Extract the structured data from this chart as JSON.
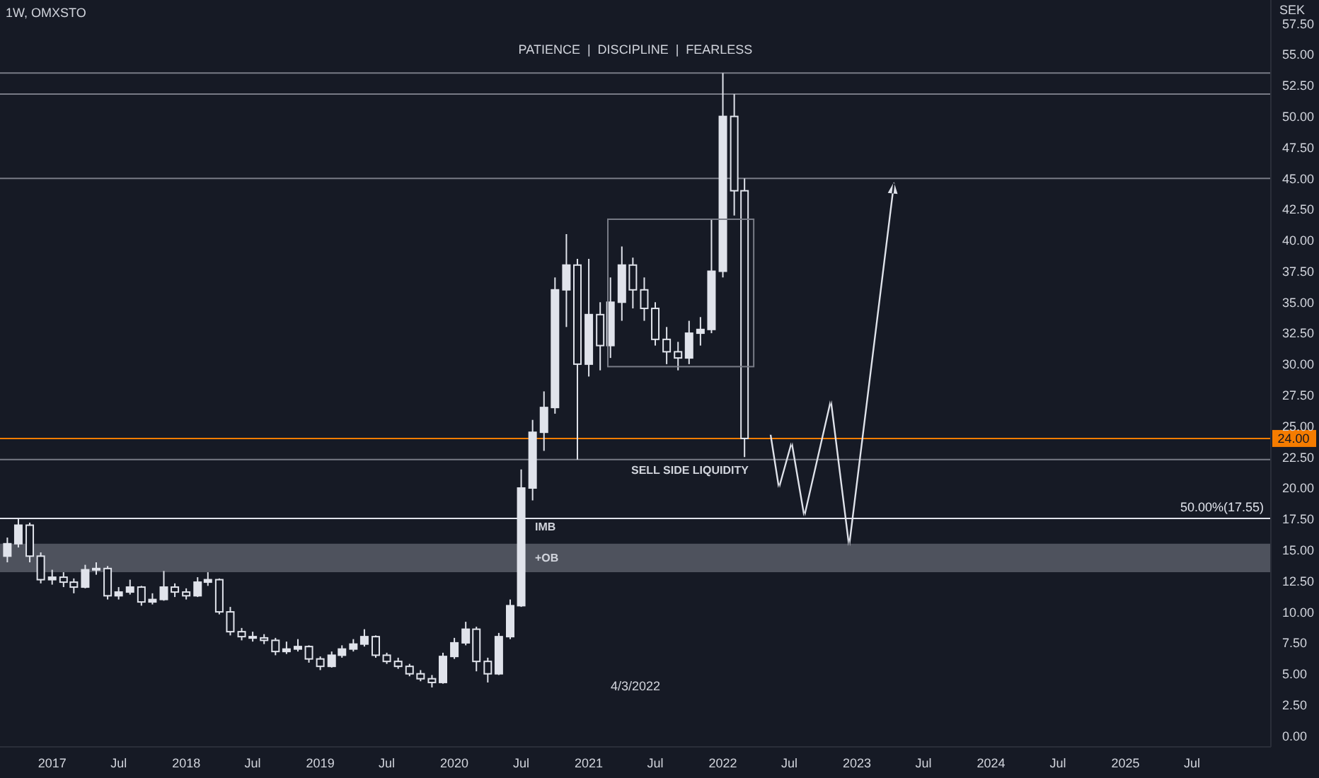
{
  "chart_data": {
    "type": "candlestick",
    "subtitle": "PATIENCE  |  DISCIPLINE  |  FEARLESS",
    "ylabel": "SEK",
    "color": "#e0e3eb",
    "x": [
      "2016-09-01",
      "2016-10-01",
      "2016-11-01",
      "2016-12-01",
      "2017-01-01",
      "2017-02-01",
      "2017-03-01",
      "2017-04-01",
      "2017-05-01",
      "2017-06-01",
      "2017-07-01",
      "2017-08-01",
      "2017-09-01",
      "2017-10-01",
      "2017-11-01",
      "2017-12-01",
      "2018-01-01",
      "2018-02-01",
      "2018-03-01",
      "2018-04-01",
      "2018-05-01",
      "2018-06-01",
      "2018-07-01",
      "2018-08-01",
      "2018-09-01",
      "2018-10-01",
      "2018-11-01",
      "2018-12-01",
      "2019-01-01",
      "2019-02-01",
      "2019-03-01",
      "2019-04-01",
      "2019-05-01",
      "2019-06-01",
      "2019-07-01",
      "2019-08-01",
      "2019-09-01",
      "2019-10-01",
      "2019-11-01",
      "2019-12-01",
      "2020-01-01",
      "2020-02-01",
      "2020-03-01",
      "2020-04-01",
      "2020-05-01",
      "2020-06-01",
      "2020-07-01",
      "2020-08-01",
      "2020-09-01",
      "2020-10-01",
      "2020-11-01",
      "2020-12-01",
      "2021-01-01",
      "2021-02-01",
      "2021-03-01",
      "2021-04-01",
      "2021-05-01",
      "2021-06-01",
      "2021-07-01",
      "2021-08-01",
      "2021-09-01",
      "2021-10-01",
      "2021-11-01",
      "2021-12-01",
      "2022-01-01",
      "2022-02-01",
      "2022-03-01"
    ],
    "ohlc": [
      [
        14.5,
        16.0,
        14.0,
        15.5
      ],
      [
        15.5,
        17.55,
        15.2,
        17.0
      ],
      [
        17.0,
        17.2,
        14.0,
        14.5
      ],
      [
        14.5,
        14.8,
        12.3,
        12.6
      ],
      [
        12.6,
        13.4,
        12.2,
        12.8
      ],
      [
        12.8,
        13.2,
        12.0,
        12.4
      ],
      [
        12.4,
        12.7,
        11.5,
        12.0
      ],
      [
        12.0,
        13.8,
        11.9,
        13.4
      ],
      [
        13.4,
        14.0,
        13.0,
        13.5
      ],
      [
        13.5,
        13.7,
        11.0,
        11.3
      ],
      [
        11.3,
        12.0,
        11.0,
        11.6
      ],
      [
        11.6,
        12.6,
        11.4,
        12.0
      ],
      [
        12.0,
        12.1,
        10.5,
        10.8
      ],
      [
        10.8,
        11.5,
        10.6,
        11.0
      ],
      [
        11.0,
        13.3,
        10.9,
        12.0
      ],
      [
        12.0,
        12.3,
        11.2,
        11.6
      ],
      [
        11.6,
        11.9,
        11.0,
        11.3
      ],
      [
        11.3,
        12.8,
        11.2,
        12.4
      ],
      [
        12.4,
        13.2,
        12.1,
        12.6
      ],
      [
        12.6,
        12.7,
        9.8,
        10.0
      ],
      [
        10.0,
        10.4,
        8.1,
        8.4
      ],
      [
        8.4,
        8.7,
        7.7,
        8.0
      ],
      [
        8.0,
        8.4,
        7.6,
        7.9
      ],
      [
        7.9,
        8.2,
        7.4,
        7.7
      ],
      [
        7.7,
        7.9,
        6.5,
        6.8
      ],
      [
        6.8,
        7.6,
        6.6,
        7.0
      ],
      [
        7.0,
        7.8,
        6.8,
        7.2
      ],
      [
        7.2,
        7.3,
        5.9,
        6.2
      ],
      [
        6.2,
        6.4,
        5.3,
        5.6
      ],
      [
        5.6,
        6.8,
        5.5,
        6.5
      ],
      [
        6.5,
        7.3,
        6.3,
        7.0
      ],
      [
        7.0,
        7.8,
        6.8,
        7.4
      ],
      [
        7.4,
        8.6,
        7.2,
        8.0
      ],
      [
        8.0,
        8.1,
        6.3,
        6.5
      ],
      [
        6.5,
        6.7,
        5.8,
        6.0
      ],
      [
        6.0,
        6.3,
        5.4,
        5.6
      ],
      [
        5.6,
        5.8,
        4.8,
        5.0
      ],
      [
        5.0,
        5.3,
        4.4,
        4.6
      ],
      [
        4.6,
        4.9,
        3.9,
        4.3
      ],
      [
        4.3,
        6.7,
        4.2,
        6.4
      ],
      [
        6.4,
        7.9,
        6.2,
        7.5
      ],
      [
        7.5,
        9.2,
        7.3,
        8.6
      ],
      [
        8.6,
        8.8,
        5.2,
        6.0
      ],
      [
        6.0,
        6.3,
        4.3,
        5.0
      ],
      [
        5.0,
        8.3,
        4.9,
        8.0
      ],
      [
        8.0,
        11.0,
        7.8,
        10.5
      ],
      [
        10.5,
        21.5,
        10.4,
        20.0
      ],
      [
        20.0,
        25.5,
        19.0,
        24.5
      ],
      [
        24.5,
        27.8,
        23.0,
        26.5
      ],
      [
        26.5,
        37.0,
        26.0,
        36.0
      ],
      [
        36.0,
        40.5,
        33.0,
        38.0
      ],
      [
        38.0,
        38.5,
        22.3,
        30.0
      ],
      [
        30.0,
        38.5,
        29.0,
        34.0
      ],
      [
        34.0,
        35.0,
        29.5,
        31.5
      ],
      [
        31.5,
        37.0,
        30.5,
        35.0
      ],
      [
        35.0,
        39.5,
        33.5,
        38.0
      ],
      [
        38.0,
        38.6,
        34.5,
        36.0
      ],
      [
        36.0,
        37.0,
        33.5,
        34.5
      ],
      [
        34.5,
        35.0,
        31.5,
        32.0
      ],
      [
        32.0,
        33.0,
        30.0,
        31.0
      ],
      [
        31.0,
        31.8,
        29.5,
        30.5
      ],
      [
        30.5,
        33.5,
        30.0,
        32.5
      ],
      [
        32.5,
        33.8,
        31.5,
        32.8
      ],
      [
        32.8,
        41.7,
        32.5,
        37.5
      ],
      [
        37.5,
        53.5,
        37.0,
        50.0
      ],
      [
        50.0,
        51.8,
        42.0,
        44.0
      ],
      [
        44.0,
        45.0,
        22.5,
        24.0
      ]
    ],
    "xlim": [
      "2016-08-12",
      "2026-02-01"
    ],
    "xticks": [
      {
        "value": "2017-01-01",
        "label": "2017"
      },
      {
        "value": "2017-07-01",
        "label": "Jul"
      },
      {
        "value": "2018-01-01",
        "label": "2018"
      },
      {
        "value": "2018-07-01",
        "label": "Jul"
      },
      {
        "value": "2019-01-01",
        "label": "2019"
      },
      {
        "value": "2019-07-01",
        "label": "Jul"
      },
      {
        "value": "2020-01-01",
        "label": "2020"
      },
      {
        "value": "2020-07-01",
        "label": "Jul"
      },
      {
        "value": "2021-01-01",
        "label": "2021"
      },
      {
        "value": "2021-07-01",
        "label": "Jul"
      },
      {
        "value": "2022-01-01",
        "label": "2022"
      },
      {
        "value": "2022-07-01",
        "label": "Jul"
      },
      {
        "value": "2023-01-01",
        "label": "2023"
      },
      {
        "value": "2023-07-01",
        "label": "Jul"
      },
      {
        "value": "2024-01-01",
        "label": "2024"
      },
      {
        "value": "2024-07-01",
        "label": "Jul"
      },
      {
        "value": "2025-01-01",
        "label": "2025"
      },
      {
        "value": "2025-07-01",
        "label": "Jul"
      }
    ],
    "ylim": [
      -0.9,
      59.4
    ],
    "yticks": [
      {
        "value": 0,
        "label": "0.00"
      },
      {
        "value": 2.5,
        "label": "2.50"
      },
      {
        "value": 5,
        "label": "5.00"
      },
      {
        "value": 7.5,
        "label": "7.50"
      },
      {
        "value": 10,
        "label": "10.00"
      },
      {
        "value": 12.5,
        "label": "12.50"
      },
      {
        "value": 15,
        "label": "15.00"
      },
      {
        "value": 17.5,
        "label": "17.50"
      },
      {
        "value": 20,
        "label": "20.00"
      },
      {
        "value": 22.5,
        "label": "22.50"
      },
      {
        "value": 25,
        "label": "25.00"
      },
      {
        "value": 27.5,
        "label": "27.50"
      },
      {
        "value": 30,
        "label": "30.00"
      },
      {
        "value": 32.5,
        "label": "32.50"
      },
      {
        "value": 35,
        "label": "35.00"
      },
      {
        "value": 37.5,
        "label": "37.50"
      },
      {
        "value": 40,
        "label": "40.00"
      },
      {
        "value": 42.5,
        "label": "42.50"
      },
      {
        "value": 45,
        "label": "45.00"
      },
      {
        "value": 47.5,
        "label": "47.50"
      },
      {
        "value": 50,
        "label": "50.00"
      },
      {
        "value": 52.5,
        "label": "52.50"
      },
      {
        "value": 55,
        "label": "55.00"
      },
      {
        "value": 57.5,
        "label": "57.50"
      }
    ],
    "ref_lines": [
      {
        "axis": "y",
        "value": 24.0,
        "label": "24.00",
        "color": "#f57c00"
      },
      {
        "axis": "y",
        "value": 17.55,
        "label": "50.00%(17.55)",
        "color": "#e0e3eb"
      },
      {
        "axis": "y",
        "value": 53.5,
        "color": "#787b86"
      },
      {
        "axis": "y",
        "value": 51.8,
        "color": "#787b86"
      },
      {
        "axis": "y",
        "value": 45.0,
        "color": "#787b86"
      },
      {
        "axis": "y",
        "value": 22.3,
        "color": "#787b86"
      }
    ],
    "bands": [
      {
        "axis": "y",
        "from": 13.2,
        "to": 15.5,
        "color": "#5d606b"
      }
    ],
    "annotations": [
      "1W, OMXSTO",
      "4/3/2022",
      "SELL SIDE LIQUIDITY",
      "IMB",
      "+OB"
    ]
  }
}
